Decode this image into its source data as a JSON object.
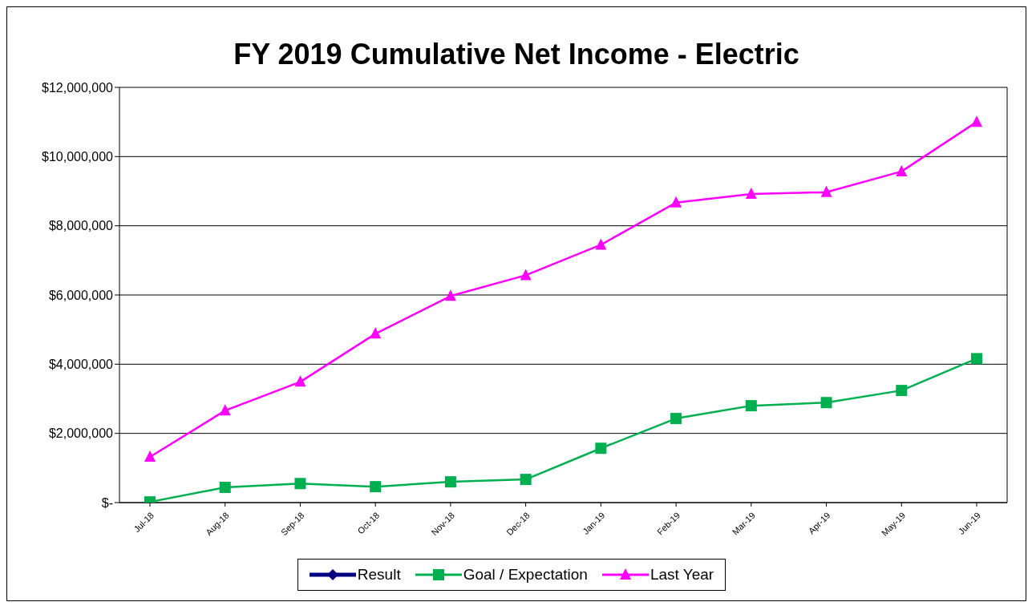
{
  "chart_data": {
    "type": "line",
    "title": "FY 2019 Cumulative Net Income - Electric",
    "categories": [
      "Jul-18",
      "Aug-18",
      "Sep-18",
      "Oct-18",
      "Nov-18",
      "Dec-18",
      "Jan-19",
      "Feb-19",
      "Mar-19",
      "Apr-19",
      "May-19",
      "Jun-19"
    ],
    "series": [
      {
        "name": "Result",
        "color": "#000080",
        "marker": "diamond",
        "values": [
          null,
          null,
          null,
          null,
          null,
          null,
          null,
          null,
          null,
          null,
          null,
          null
        ]
      },
      {
        "name": "Goal / Expectation",
        "color": "#00b050",
        "marker": "square",
        "values": [
          20000,
          440000,
          550000,
          460000,
          600000,
          670000,
          1570000,
          2430000,
          2800000,
          2890000,
          3240000,
          4160000
        ]
      },
      {
        "name": "Last Year",
        "color": "#ff00ff",
        "marker": "triangle",
        "values": [
          1320000,
          2660000,
          3490000,
          4880000,
          5970000,
          6570000,
          7450000,
          8670000,
          8920000,
          8970000,
          9570000,
          11000000
        ]
      }
    ],
    "ylim": [
      0,
      12000000
    ],
    "yticks": [
      {
        "value": 0,
        "label": "$-"
      },
      {
        "value": 2000000,
        "label": "$2,000,000"
      },
      {
        "value": 4000000,
        "label": "$4,000,000"
      },
      {
        "value": 6000000,
        "label": "$6,000,000"
      },
      {
        "value": 8000000,
        "label": "$8,000,000"
      },
      {
        "value": 10000000,
        "label": "$10,000,000"
      },
      {
        "value": 12000000,
        "label": "$12,000,000"
      }
    ],
    "grid": "y",
    "legend": "bottom",
    "line_style": "solid"
  }
}
